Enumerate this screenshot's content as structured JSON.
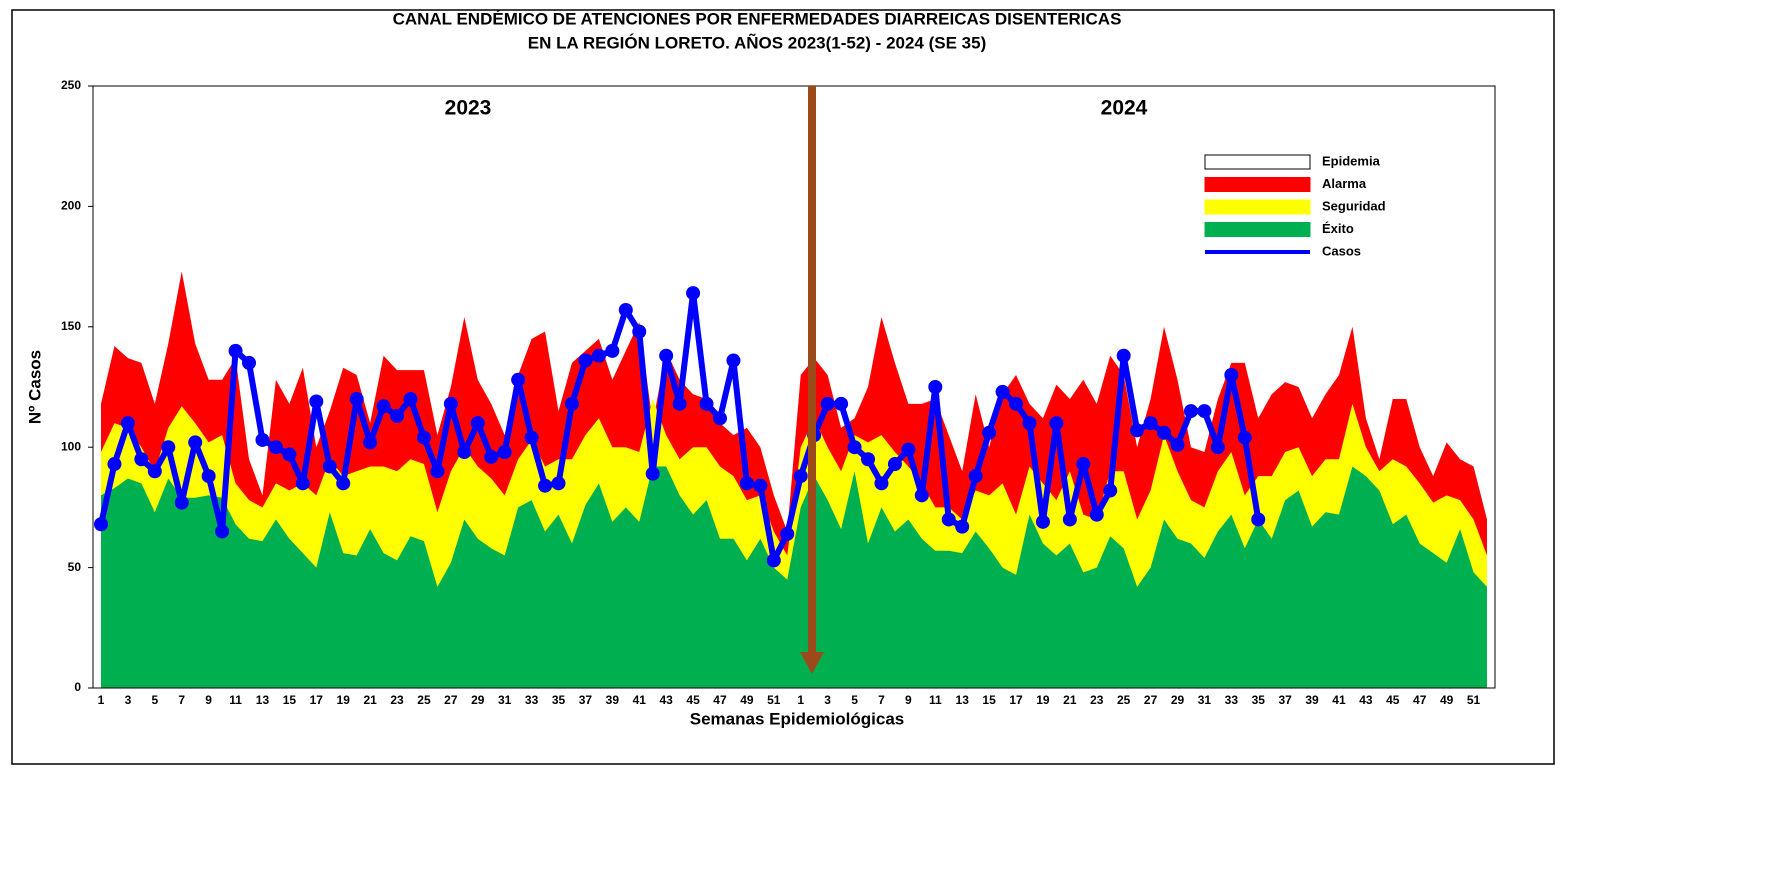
{
  "chart_data": {
    "type": "area",
    "title": [
      "CANAL ENDÉMICO DE ATENCIONES POR ENFERMEDADES DIARREICAS DISENTERICAS",
      "EN LA REGIÓN LORETO.  AÑOS 2023(1-52) - 2024 (SE  35)"
    ],
    "annotations": [
      "2023",
      "2024"
    ],
    "x_label": "Semanas Epidemiológicas",
    "y_label": "Nº Casos",
    "ylim": [
      0,
      250
    ],
    "yticks": [
      0,
      50,
      100,
      150,
      200,
      250
    ],
    "grid": false,
    "legend": "upper right",
    "categories": [
      "1",
      null,
      "3",
      null,
      "5",
      null,
      "7",
      null,
      "9",
      null,
      "11",
      null,
      "13",
      null,
      "15",
      null,
      "17",
      null,
      "19",
      null,
      "21",
      null,
      "23",
      null,
      "25",
      null,
      "27",
      null,
      "29",
      null,
      "31",
      null,
      "33",
      null,
      "35",
      null,
      "37",
      null,
      "39",
      null,
      "41",
      null,
      "43",
      null,
      "45",
      null,
      "47",
      null,
      "49",
      null,
      "51",
      null,
      "1",
      null,
      "3",
      null,
      "5",
      null,
      "7",
      null,
      "9",
      null,
      "11",
      null,
      "13",
      null,
      "15",
      null,
      "17",
      null,
      "19",
      null,
      "21",
      null,
      "23",
      null,
      "25",
      null,
      "27",
      null,
      "29",
      null,
      "31",
      null,
      "33",
      null,
      "35",
      null,
      "37",
      null,
      "39",
      null,
      "41",
      null,
      "43",
      null,
      "45",
      null,
      "47",
      null,
      "49",
      null,
      "51",
      null
    ],
    "series": [
      {
        "name": "Epidemia",
        "color": "#ffffff",
        "kind": "area"
      },
      {
        "name": "Alarma",
        "color": "#ff0000",
        "kind": "area",
        "values": [
          118,
          142,
          137,
          135,
          118,
          143,
          173,
          143,
          128,
          128,
          137,
          95,
          80,
          128,
          118,
          133,
          100,
          115,
          133,
          130,
          110,
          138,
          132,
          132,
          132,
          105,
          125,
          154,
          128,
          118,
          105,
          130,
          145,
          148,
          115,
          135,
          140,
          145,
          128,
          140,
          152,
          110,
          140,
          128,
          122,
          120,
          110,
          105,
          108,
          100,
          80,
          65,
          130,
          137,
          130,
          108,
          112,
          125,
          154,
          135,
          118,
          118,
          120,
          105,
          90,
          122,
          100,
          122,
          130,
          118,
          112,
          126,
          120,
          128,
          118,
          138,
          130,
          100,
          120,
          150,
          128,
          100,
          98,
          120,
          135,
          135,
          112,
          122,
          127,
          125,
          112,
          122,
          130,
          150,
          112,
          95,
          120,
          120,
          100,
          88,
          102,
          95,
          92,
          70
        ]
      },
      {
        "name": "Seguridad",
        "color": "#ffff00",
        "kind": "area",
        "values": [
          98,
          110,
          108,
          100,
          90,
          108,
          117,
          110,
          102,
          105,
          85,
          78,
          75,
          85,
          82,
          85,
          80,
          95,
          88,
          90,
          92,
          92,
          90,
          95,
          93,
          73,
          90,
          100,
          92,
          87,
          80,
          95,
          103,
          92,
          95,
          95,
          105,
          112,
          100,
          100,
          98,
          120,
          105,
          95,
          100,
          100,
          92,
          88,
          78,
          80,
          65,
          55,
          100,
          112,
          100,
          90,
          105,
          102,
          105,
          98,
          92,
          85,
          75,
          75,
          70,
          82,
          80,
          85,
          72,
          92,
          85,
          78,
          90,
          72,
          70,
          90,
          90,
          70,
          82,
          105,
          90,
          78,
          75,
          90,
          98,
          80,
          88,
          88,
          98,
          100,
          88,
          95,
          95,
          118,
          100,
          90,
          95,
          92,
          85,
          77,
          80,
          78,
          70,
          55
        ]
      },
      {
        "name": "Éxito",
        "color": "#00b050",
        "kind": "area",
        "values": [
          80,
          83,
          87,
          85,
          73,
          87,
          79,
          79,
          80,
          79,
          68,
          62,
          61,
          70,
          62,
          56,
          50,
          73,
          56,
          55,
          66,
          56,
          53,
          63,
          61,
          42,
          52,
          70,
          62,
          58,
          55,
          75,
          78,
          65,
          72,
          60,
          76,
          85,
          69,
          75,
          69,
          92,
          92,
          80,
          72,
          78,
          62,
          62,
          53,
          62,
          50,
          45,
          75,
          88,
          78,
          66,
          90,
          60,
          75,
          65,
          70,
          62,
          57,
          57,
          56,
          65,
          58,
          50,
          47,
          72,
          60,
          55,
          60,
          48,
          50,
          63,
          58,
          42,
          50,
          70,
          62,
          60,
          54,
          65,
          72,
          58,
          70,
          62,
          78,
          82,
          67,
          73,
          72,
          92,
          88,
          82,
          68,
          72,
          60,
          56,
          52,
          66,
          48,
          42
        ]
      },
      {
        "name": "Casos",
        "color": "#0000ff",
        "kind": "line",
        "values": [
          68,
          93,
          110,
          95,
          90,
          100,
          77,
          102,
          88,
          65,
          140,
          135,
          103,
          100,
          97,
          85,
          119,
          92,
          85,
          120,
          102,
          117,
          113,
          120,
          104,
          90,
          118,
          98,
          110,
          96,
          98,
          128,
          104,
          84,
          85,
          118,
          136,
          138,
          140,
          157,
          148,
          89,
          138,
          118,
          164,
          118,
          112,
          136,
          85,
          84,
          53,
          64,
          88,
          105,
          118,
          118,
          100,
          95,
          85,
          93,
          99,
          80,
          125,
          70,
          67,
          88,
          106,
          123,
          118,
          110,
          69,
          110,
          70,
          93,
          72,
          82,
          138,
          107,
          110,
          106,
          101,
          115,
          115,
          100,
          130,
          104,
          70,
          null,
          null,
          null,
          null,
          null,
          null,
          null,
          null,
          null,
          null,
          null,
          null,
          null,
          null,
          null,
          null,
          null
        ]
      }
    ]
  }
}
